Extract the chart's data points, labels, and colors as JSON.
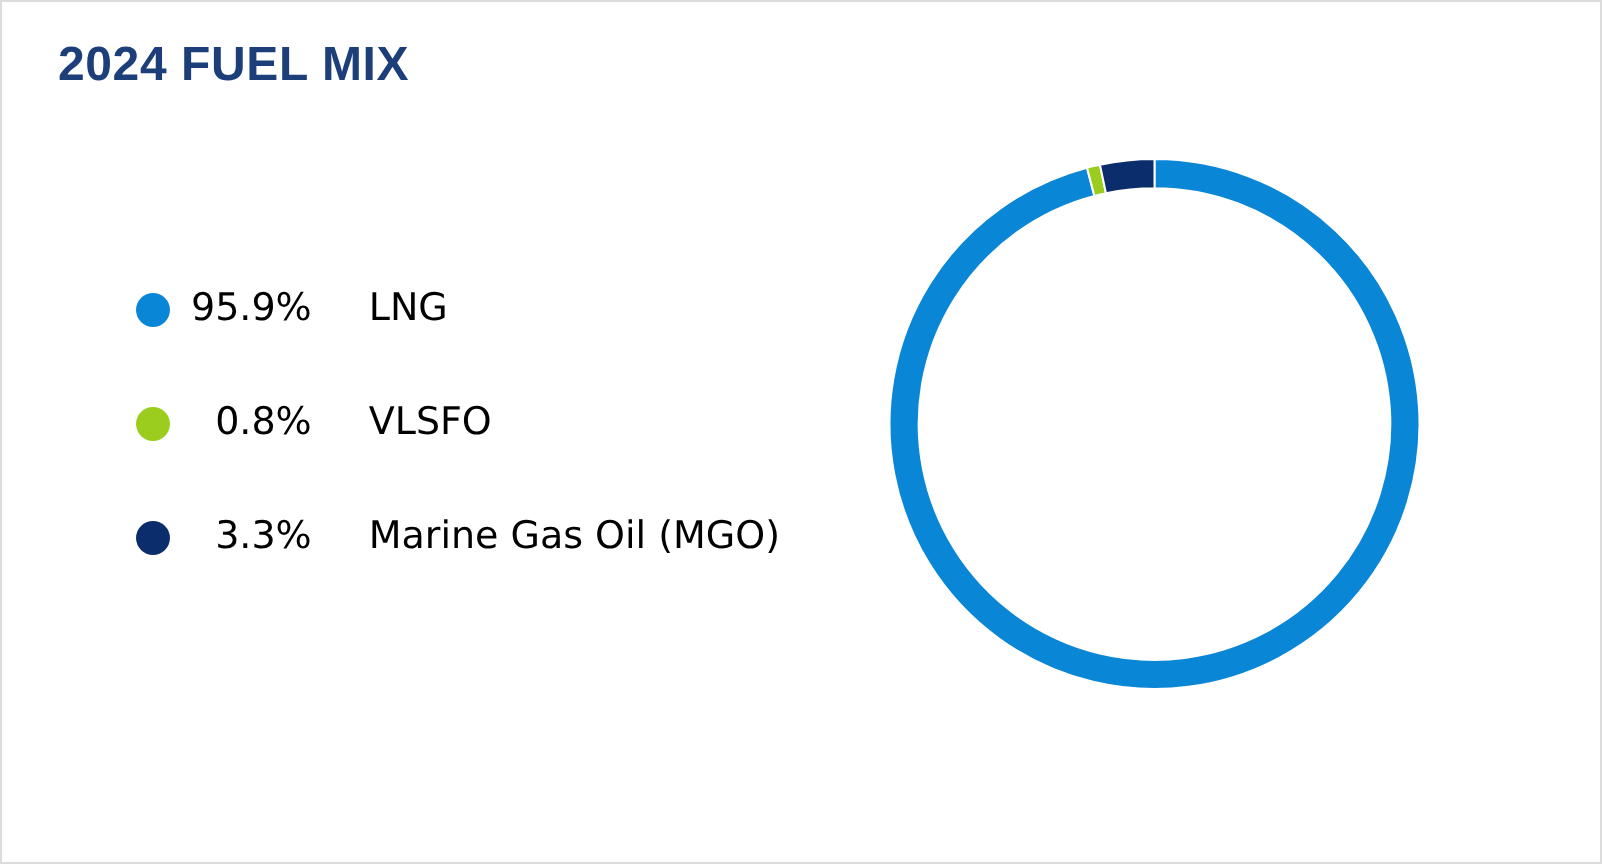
{
  "chart_data": {
    "type": "donut",
    "title": "2024 FUEL MIX",
    "categories": [
      "LNG",
      "VLSFO",
      "Marine Gas Oil (MGO)"
    ],
    "values": [
      95.9,
      0.8,
      3.3
    ],
    "colors": [
      "#0a86d6",
      "#9acd1e",
      "#0c2d6b"
    ],
    "value_labels": [
      "95.9%",
      "0.8%",
      "3.3%"
    ],
    "legend": "left"
  }
}
